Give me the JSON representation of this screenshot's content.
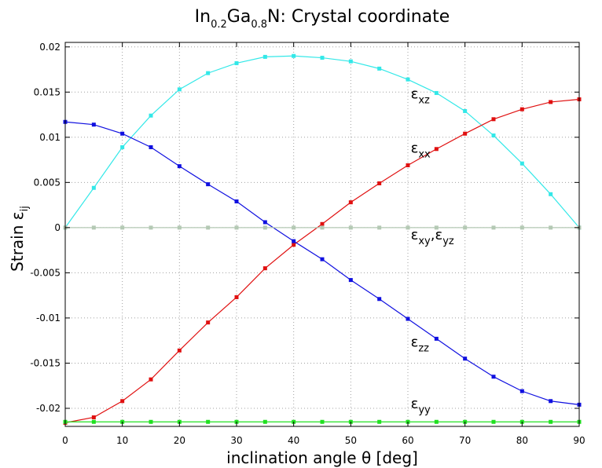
{
  "chart_data": {
    "type": "line",
    "title": {
      "main": "In",
      "sub1": "0.2",
      "mid": "Ga",
      "sub2": "0.8",
      "tail": "N: Crystal coordinate"
    },
    "xlabel": "inclination angle θ [deg]",
    "ylabel": {
      "main": "Strain ε",
      "sub": "ij"
    },
    "xlim": [
      0,
      90
    ],
    "ylim": [
      -0.022,
      0.0205
    ],
    "xticks": [
      0,
      10,
      20,
      30,
      40,
      50,
      60,
      70,
      80,
      90
    ],
    "yticks": [
      0.02,
      0.015,
      0.01,
      0.005,
      0,
      -0.005,
      -0.01,
      -0.015,
      -0.02
    ],
    "ytick_labels": [
      "0.02",
      "0.015",
      "0.01",
      "0.005",
      "0",
      "-0.005",
      "-0.01",
      "-0.015",
      "-0.02"
    ],
    "grid": true,
    "x": [
      0,
      5,
      10,
      15,
      20,
      25,
      30,
      35,
      40,
      45,
      50,
      55,
      60,
      65,
      70,
      75,
      80,
      85,
      90
    ],
    "series": [
      {
        "key": "exz",
        "color": "#33e8e8",
        "label": {
          "main": "ε",
          "sub": "xz"
        },
        "label_at": [
          60.5,
          0.0143
        ],
        "values": [
          0.0,
          0.0044,
          0.0089,
          0.0124,
          0.0153,
          0.0171,
          0.0182,
          0.0189,
          0.019,
          0.0188,
          0.0184,
          0.0176,
          0.0164,
          0.0149,
          0.0129,
          0.0102,
          0.0071,
          0.0037,
          0.0
        ]
      },
      {
        "key": "exx",
        "color": "#e01010",
        "label": {
          "main": "ε",
          "sub": "xx"
        },
        "label_at": [
          60.5,
          0.0083
        ],
        "values": [
          -0.0216,
          -0.021,
          -0.0192,
          -0.0168,
          -0.0136,
          -0.0105,
          -0.0077,
          -0.0045,
          -0.0019,
          0.0004,
          0.0028,
          0.0049,
          0.0069,
          0.0087,
          0.0104,
          0.012,
          0.0131,
          0.0139,
          0.0142
        ]
      },
      {
        "key": "ezz",
        "color": "#1010e0",
        "label": {
          "main": "ε",
          "sub": "zz"
        },
        "label_at": [
          60.5,
          -0.0132
        ],
        "values": [
          0.0117,
          0.0114,
          0.0104,
          0.0089,
          0.0068,
          0.0048,
          0.0029,
          0.0006,
          -0.0015,
          -0.0035,
          -0.0058,
          -0.0079,
          -0.0101,
          -0.0123,
          -0.0145,
          -0.0165,
          -0.0181,
          -0.0192,
          -0.0196
        ]
      },
      {
        "key": "exy_eyz",
        "color": "#b4c9b4",
        "label": {
          "main": "ε",
          "sub": "xy",
          "sep": ",ε",
          "sub2": "yz"
        },
        "label_at": [
          60.5,
          -0.0013
        ],
        "values": [
          0,
          0,
          0,
          0,
          0,
          0,
          0,
          0,
          0,
          0,
          0,
          0,
          0,
          0,
          0,
          0,
          0,
          0,
          0
        ]
      },
      {
        "key": "eyy",
        "color": "#20e020",
        "label": {
          "main": "ε",
          "sub": "yy"
        },
        "label_at": [
          60.5,
          -0.02
        ],
        "values": [
          -0.0215,
          -0.0215,
          -0.0215,
          -0.0215,
          -0.0215,
          -0.0215,
          -0.0215,
          -0.0215,
          -0.0215,
          -0.0215,
          -0.0215,
          -0.0215,
          -0.0215,
          -0.0215,
          -0.0215,
          -0.0215,
          -0.0215,
          -0.0215,
          -0.0215
        ]
      }
    ]
  }
}
